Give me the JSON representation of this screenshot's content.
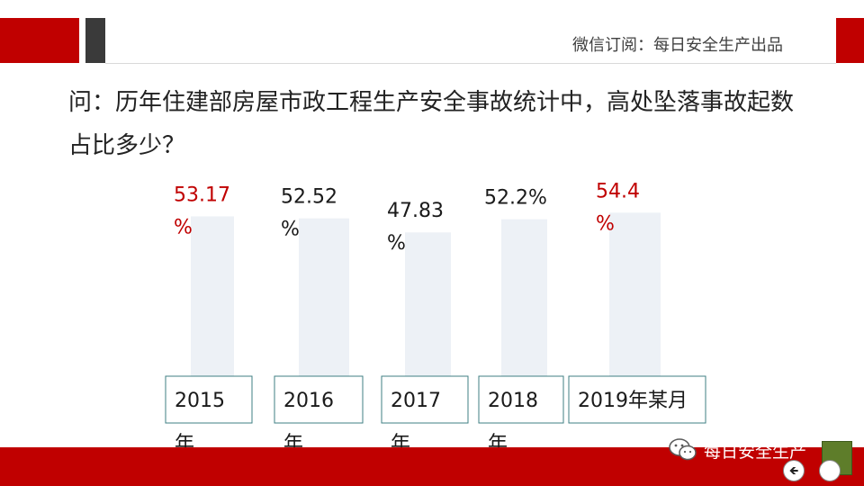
{
  "header": {
    "text": "微信订阅：每日安全生产出品"
  },
  "question": {
    "text": "问：历年住建部房屋市政工程生产安全事故统计中，高处坠落事故起数占比多少？"
  },
  "chart_data": {
    "type": "bar",
    "title": "",
    "xlabel": "",
    "ylabel": "",
    "categories": [
      "2015\n年",
      "2016\n年",
      "2017\n年",
      "2018\n年",
      "2019年某月"
    ],
    "values": [
      53.17,
      52.52,
      47.83,
      52.2,
      54.4
    ],
    "data_labels": [
      "53.17\n%",
      "52.52\n%",
      "47.83\n%",
      "52.2%",
      "54.4\n%"
    ],
    "highlight": [
      true,
      false,
      false,
      false,
      true
    ],
    "ylim": [
      0,
      60
    ],
    "grid": false,
    "legend": "none",
    "colors": {
      "bar": "#edf1f6",
      "label": "#1a1a1a",
      "highlight_label": "#c00000",
      "category_border": "#3f7f83"
    }
  },
  "watermark": {
    "text": "每日安全生产",
    "icon": "wechat-icon"
  },
  "nav": {
    "prev_icon": "prev-arrow-icon",
    "prev_glyph": "🡸",
    "next_icon": "next-icon",
    "next_glyph": ""
  }
}
